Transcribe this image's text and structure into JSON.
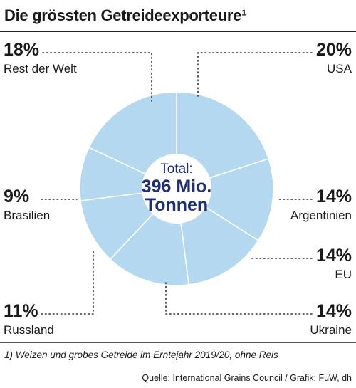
{
  "title": "Die grössten Getreideexporteure¹",
  "colors": {
    "slice": "#b5d8f1",
    "slice_stroke": "#ffffff",
    "center_text": "#1f2f73",
    "text": "#1a1a1a"
  },
  "center": {
    "line1": "Total:",
    "line2": "396 Mio.",
    "line3": "Tonnen"
  },
  "footnote": "1) Weizen und grobes Getreide im Erntejahr 2019/20, ohne Reis",
  "source": "Quelle: International Grains Council / Grafik: FuW, dh",
  "chart_data": {
    "type": "pie",
    "title": "Die grössten Getreideexporteure¹",
    "total": "396 Mio. Tonnen",
    "slices": [
      {
        "label": "USA",
        "value": 20,
        "display": "20%"
      },
      {
        "label": "Argentinien",
        "value": 14,
        "display": "14%"
      },
      {
        "label": "EU",
        "value": 14,
        "display": "14%"
      },
      {
        "label": "Ukraine",
        "value": 14,
        "display": "14%"
      },
      {
        "label": "Russland",
        "value": 11,
        "display": "11%"
      },
      {
        "label": "Brasilien",
        "value": 9,
        "display": "9%"
      },
      {
        "label": "Rest der Welt",
        "value": 18,
        "display": "18%"
      }
    ]
  }
}
